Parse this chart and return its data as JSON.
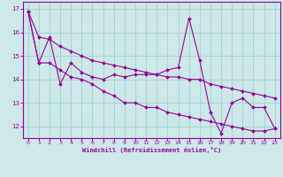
{
  "xlabel": "Windchill (Refroidissement éolien,°C)",
  "bg_color": "#cce8e8",
  "line_color": "#990099",
  "grid_color": "#99cccc",
  "xlim": [
    -0.5,
    23.5
  ],
  "ylim": [
    11.5,
    17.3
  ],
  "xticks": [
    0,
    1,
    2,
    3,
    4,
    5,
    6,
    7,
    8,
    9,
    10,
    11,
    12,
    13,
    14,
    15,
    16,
    17,
    18,
    19,
    20,
    21,
    22,
    23
  ],
  "yticks": [
    12,
    13,
    14,
    15,
    16,
    17
  ],
  "line1_x": [
    0,
    1,
    2,
    3,
    4,
    5,
    6,
    7,
    8,
    9,
    10,
    11,
    12,
    13,
    14,
    15,
    16,
    17,
    18,
    19,
    20,
    21,
    22,
    23
  ],
  "line1_y": [
    16.9,
    14.7,
    15.8,
    13.8,
    14.7,
    14.3,
    14.1,
    14.0,
    14.2,
    14.1,
    14.2,
    14.2,
    14.2,
    14.4,
    14.5,
    16.6,
    14.8,
    12.6,
    11.7,
    13.0,
    13.2,
    12.8,
    12.8,
    11.9
  ],
  "line2_x": [
    0,
    1,
    2,
    3,
    4,
    5,
    6,
    7,
    8,
    9,
    10,
    11,
    12,
    13,
    14,
    15,
    16,
    17,
    18,
    19,
    20,
    21,
    22,
    23
  ],
  "line2_y": [
    16.9,
    15.8,
    15.7,
    15.4,
    15.2,
    15.0,
    14.8,
    14.7,
    14.6,
    14.5,
    14.4,
    14.3,
    14.2,
    14.1,
    14.1,
    14.0,
    14.0,
    13.8,
    13.7,
    13.6,
    13.5,
    13.4,
    13.3,
    13.2
  ],
  "line3_x": [
    0,
    1,
    2,
    3,
    4,
    5,
    6,
    7,
    8,
    9,
    10,
    11,
    12,
    13,
    14,
    15,
    16,
    17,
    18,
    19,
    20,
    21,
    22,
    23
  ],
  "line3_y": [
    16.9,
    14.7,
    14.7,
    14.4,
    14.1,
    14.0,
    13.8,
    13.5,
    13.3,
    13.0,
    13.0,
    12.8,
    12.8,
    12.6,
    12.5,
    12.4,
    12.3,
    12.2,
    12.1,
    12.0,
    11.9,
    11.8,
    11.8,
    11.9
  ]
}
